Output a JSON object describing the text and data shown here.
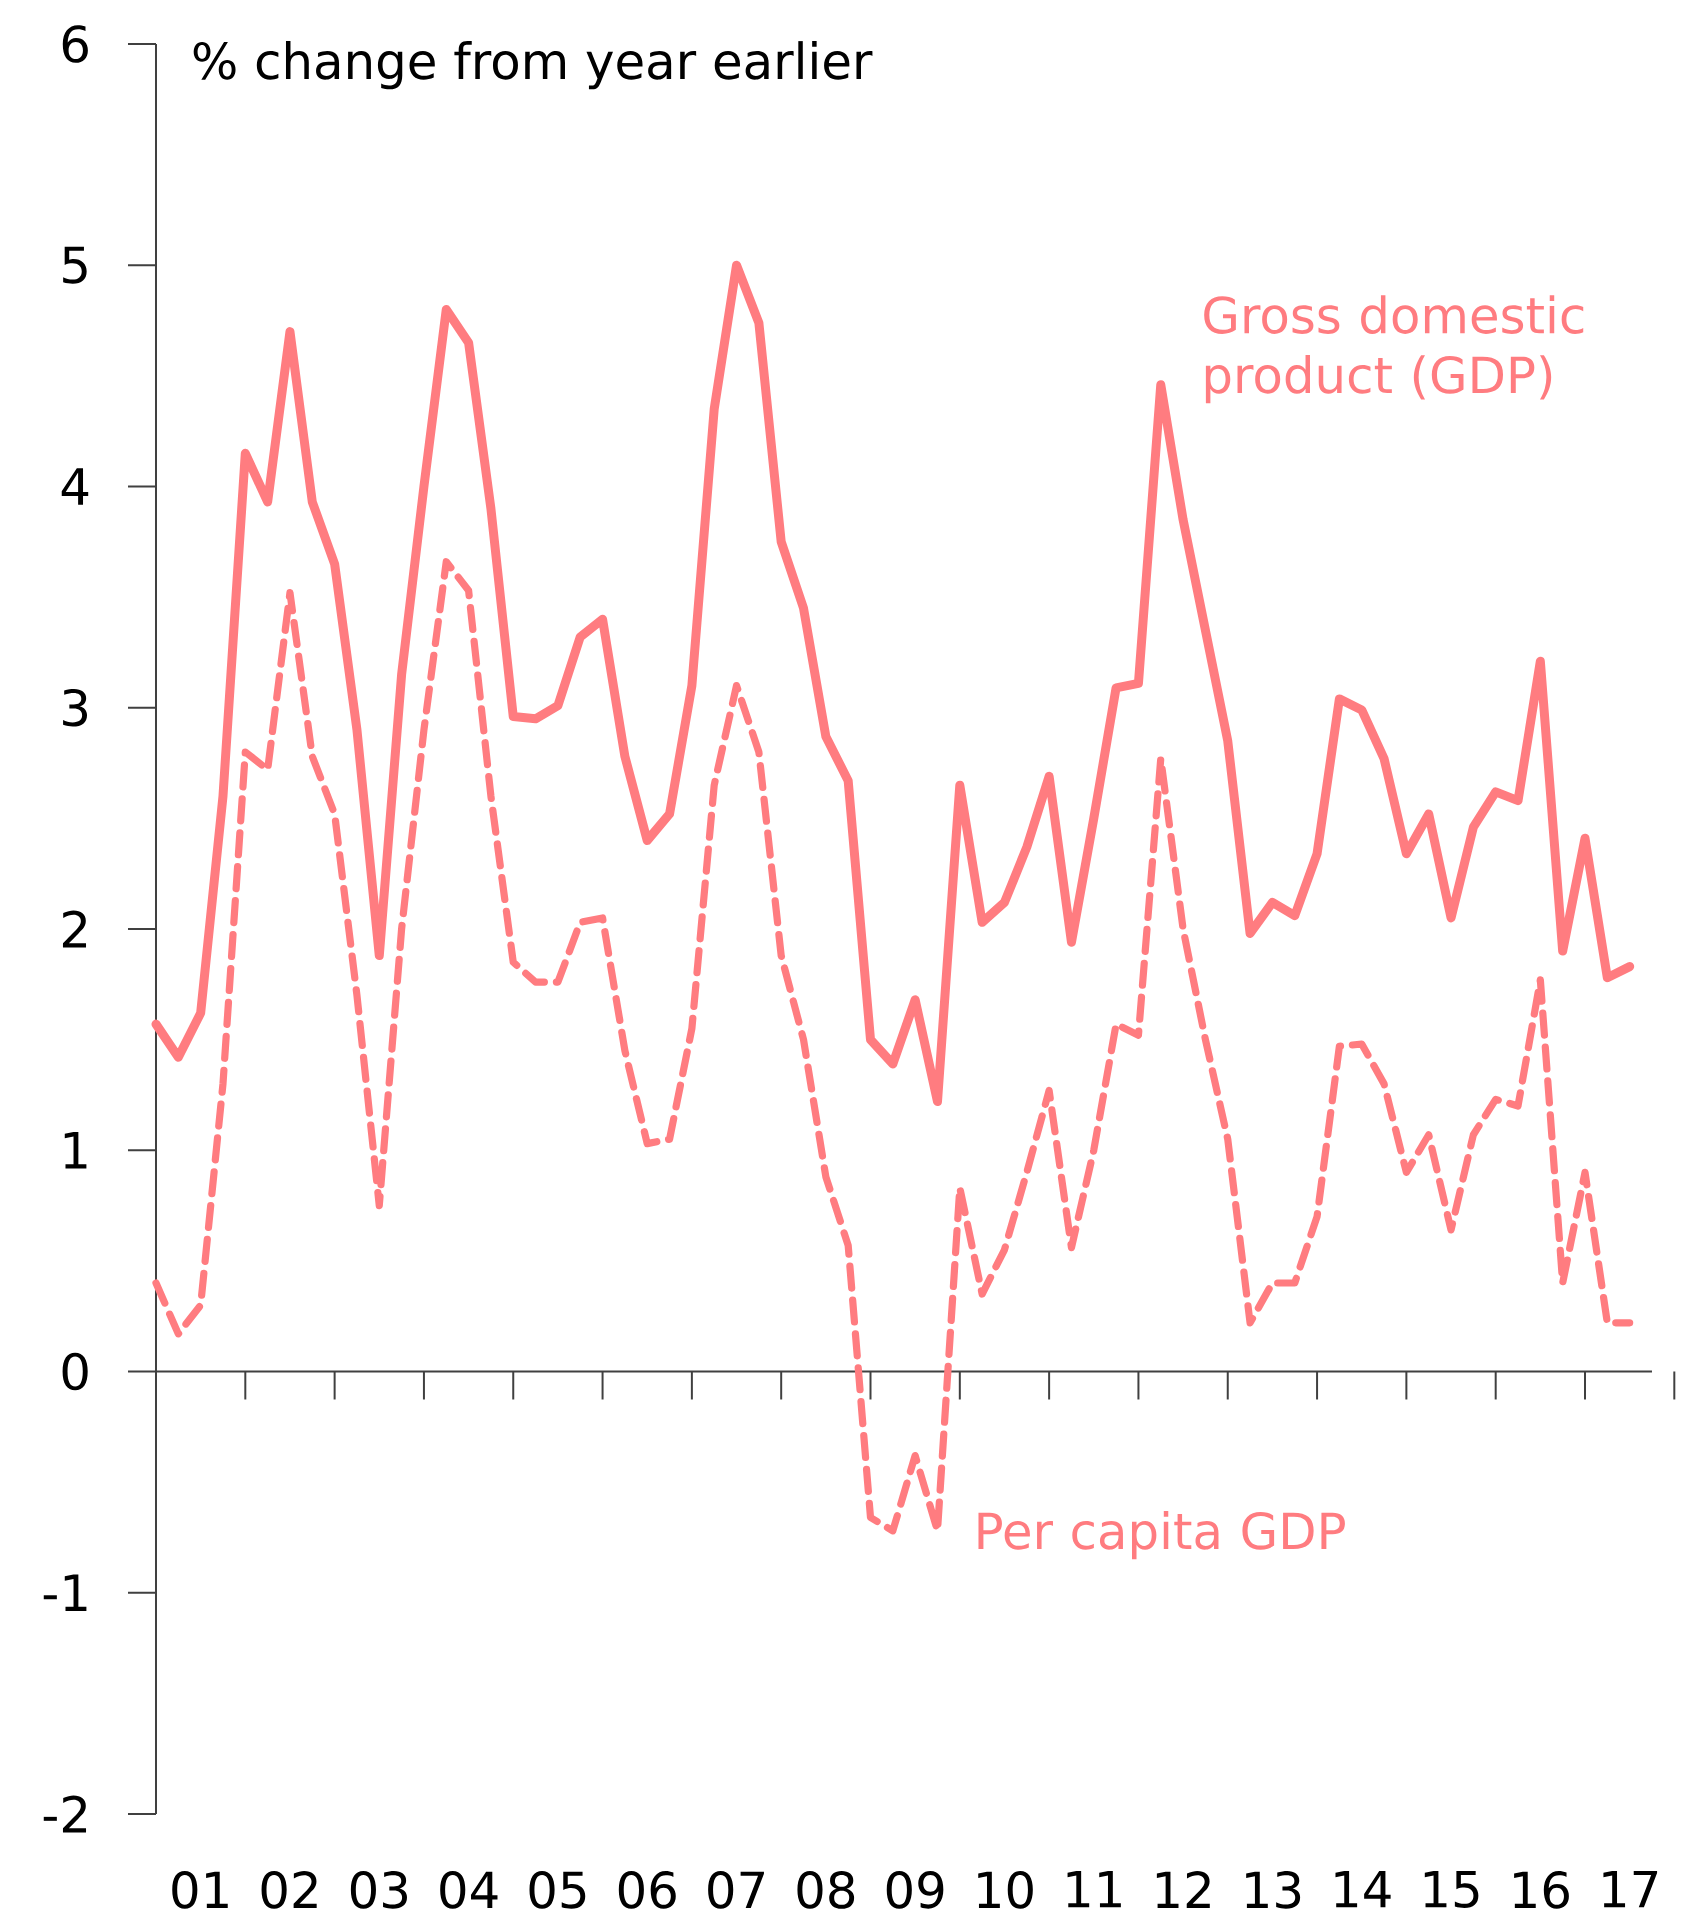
{
  "chart_data": {
    "type": "line",
    "ylabel": "% change from year earlier",
    "categories": [
      null,
      null,
      "01",
      null,
      null,
      null,
      "02",
      null,
      null,
      null,
      "03",
      null,
      null,
      null,
      "04",
      null,
      null,
      null,
      "05",
      null,
      null,
      null,
      "06",
      null,
      null,
      null,
      "07",
      null,
      null,
      null,
      "08",
      null,
      null,
      null,
      "09",
      null,
      null,
      null,
      "10",
      null,
      null,
      null,
      "11",
      null,
      null,
      null,
      "12",
      null,
      null,
      null,
      "13",
      null,
      null,
      null,
      "14",
      null,
      null,
      null,
      "15",
      null,
      null,
      null,
      "16",
      null,
      null,
      null,
      "17"
    ],
    "series": [
      {
        "name": "Gross domestic product (GDP)",
        "color": "#ff7c80",
        "line_style": "solid",
        "values": [
          1.57,
          1.42,
          1.62,
          2.6,
          4.15,
          3.93,
          4.7,
          3.93,
          3.65,
          2.9,
          1.88,
          3.15,
          4.0,
          4.8,
          4.65,
          3.9,
          2.96,
          2.95,
          3.01,
          3.32,
          3.4,
          2.78,
          2.4,
          2.52,
          3.1,
          4.35,
          5.0,
          4.74,
          3.75,
          3.45,
          2.87,
          2.67,
          1.5,
          1.39,
          1.68,
          1.22,
          2.65,
          2.03,
          2.12,
          2.37,
          2.69,
          1.94,
          2.5,
          3.09,
          3.11,
          4.46,
          3.85,
          3.35,
          2.85,
          1.98,
          2.12,
          2.06,
          2.34,
          3.04,
          2.99,
          2.77,
          2.34,
          2.52,
          2.05,
          2.46,
          2.62,
          2.58,
          3.21,
          1.9,
          2.41,
          1.78,
          1.83
        ]
      },
      {
        "name": "Per capita GDP",
        "color": "#ff7c80",
        "line_style": "dashed",
        "values": [
          0.4,
          0.17,
          0.3,
          1.3,
          2.8,
          2.72,
          3.52,
          2.78,
          2.52,
          1.7,
          0.75,
          2.0,
          2.9,
          3.66,
          3.53,
          2.6,
          1.85,
          1.76,
          1.76,
          2.03,
          2.05,
          1.45,
          1.03,
          1.05,
          1.55,
          2.65,
          3.1,
          2.8,
          1.88,
          1.5,
          0.88,
          0.57,
          -0.66,
          -0.72,
          -0.38,
          -0.72,
          0.83,
          0.35,
          0.55,
          0.9,
          1.27,
          0.56,
          1.0,
          1.57,
          1.52,
          2.77,
          2.0,
          1.5,
          1.05,
          0.22,
          0.4,
          0.4,
          0.7,
          1.47,
          1.48,
          1.3,
          0.9,
          1.07,
          0.64,
          1.07,
          1.23,
          1.2,
          1.77,
          0.4,
          0.9,
          0.22,
          0.22
        ]
      }
    ],
    "ylim": [
      -2,
      6
    ],
    "yticks": [
      -2,
      -1,
      0,
      1,
      2,
      3,
      4,
      5,
      6
    ],
    "ref_lines": [
      {
        "axis": "y",
        "value": 0
      }
    ],
    "grid": false,
    "legend": false,
    "marker": "none"
  }
}
